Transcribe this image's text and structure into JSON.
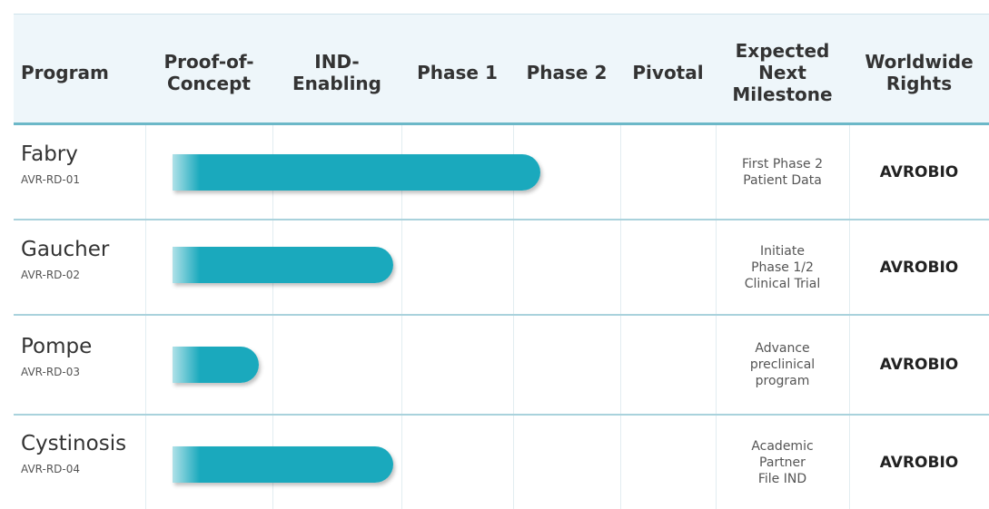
{
  "header": [
    [
      "Program"
    ],
    [
      "Proof-of-",
      "Concept"
    ],
    [
      "IND-",
      "Enabling"
    ],
    [
      "Phase 1"
    ],
    [
      "Phase 2"
    ],
    [
      "Pivotal"
    ],
    [
      "Expected",
      "Next",
      "Milestone"
    ],
    [
      "Worldwide",
      "Rights"
    ]
  ],
  "rows": [
    {
      "program": "Fabry",
      "code": "AVR-RD-01",
      "milestone": [
        "First Phase 2",
        "Patient Data"
      ],
      "rights": "AVROBIO"
    },
    {
      "program": "Gaucher",
      "code": "AVR-RD-02",
      "milestone": [
        "Initiate",
        "Phase 1/2",
        "Clinical Trial"
      ],
      "rights": "AVROBIO"
    },
    {
      "program": "Pompe",
      "code": "AVR-RD-03",
      "milestone": [
        "Advance",
        "preclinical",
        "program"
      ],
      "rights": "AVROBIO"
    },
    {
      "program": "Cystinosis",
      "code": "AVR-RD-04",
      "milestone": [
        "Academic",
        "Partner",
        "File IND"
      ],
      "rights": "AVROBIO"
    }
  ]
}
